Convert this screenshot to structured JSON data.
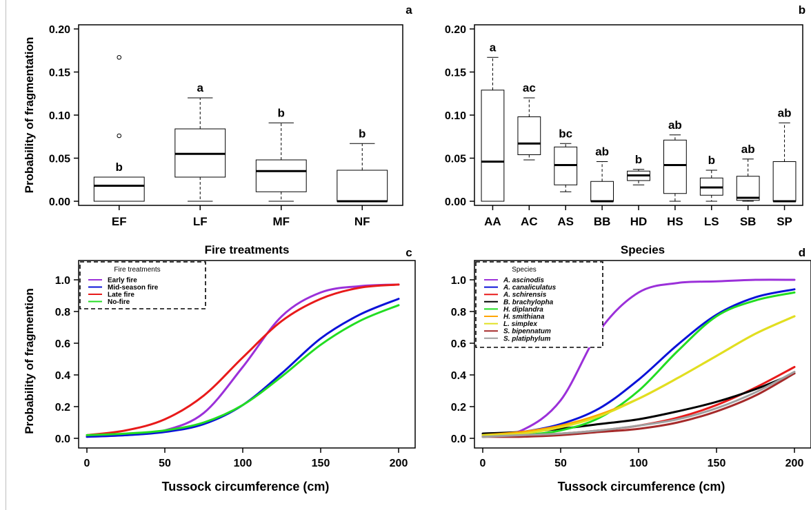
{
  "chart_data": [
    {
      "panel": "a",
      "type": "box",
      "ylabel": "Probability of fragmentation",
      "ylim": [
        0,
        0.2
      ],
      "yticks": [
        "0.00",
        "0.05",
        "0.10",
        "0.15",
        "0.20"
      ],
      "categories": [
        "EF",
        "LF",
        "MF",
        "NF"
      ],
      "boxes": [
        {
          "min": 0,
          "q1": 0,
          "median": 0.018,
          "q3": 0.028,
          "max": 0.028,
          "letter": "b",
          "outliers": [
            0.076,
            0.167
          ]
        },
        {
          "min": 0,
          "q1": 0.028,
          "median": 0.055,
          "q3": 0.084,
          "max": 0.12,
          "letter": "a",
          "outliers": []
        },
        {
          "min": 0,
          "q1": 0.011,
          "median": 0.035,
          "q3": 0.048,
          "max": 0.091,
          "letter": "b",
          "outliers": []
        },
        {
          "min": 0,
          "q1": 0,
          "median": 0,
          "q3": 0.036,
          "max": 0.067,
          "letter": "b",
          "outliers": []
        }
      ]
    },
    {
      "panel": "b",
      "type": "box",
      "ylabel": "",
      "ylim": [
        0,
        0.2
      ],
      "yticks": [
        "0.00",
        "0.05",
        "0.10",
        "0.15",
        "0.20"
      ],
      "categories": [
        "AA",
        "AC",
        "AS",
        "BB",
        "HD",
        "HS",
        "LS",
        "SB",
        "SP"
      ],
      "boxes": [
        {
          "min": 0,
          "q1": 0,
          "median": 0.046,
          "q3": 0.129,
          "max": 0.167,
          "letter": "a",
          "outliers": []
        },
        {
          "min": 0.048,
          "q1": 0.054,
          "median": 0.067,
          "q3": 0.098,
          "max": 0.12,
          "letter": "ac",
          "outliers": []
        },
        {
          "min": 0.011,
          "q1": 0.019,
          "median": 0.042,
          "q3": 0.063,
          "max": 0.067,
          "letter": "bc",
          "outliers": []
        },
        {
          "min": 0,
          "q1": 0,
          "median": 0,
          "q3": 0.023,
          "max": 0.046,
          "letter": "ab",
          "outliers": []
        },
        {
          "min": 0.019,
          "q1": 0.024,
          "median": 0.03,
          "q3": 0.035,
          "max": 0.037,
          "letter": "b",
          "outliers": []
        },
        {
          "min": 0,
          "q1": 0.009,
          "median": 0.042,
          "q3": 0.071,
          "max": 0.077,
          "letter": "ab",
          "outliers": []
        },
        {
          "min": 0,
          "q1": 0.007,
          "median": 0.016,
          "q3": 0.027,
          "max": 0.036,
          "letter": "b",
          "outliers": []
        },
        {
          "min": 0,
          "q1": 0.001,
          "median": 0.004,
          "q3": 0.029,
          "max": 0.049,
          "letter": "ab",
          "outliers": []
        },
        {
          "min": 0,
          "q1": 0,
          "median": 0,
          "q3": 0.046,
          "max": 0.091,
          "letter": "ab",
          "outliers": []
        }
      ]
    },
    {
      "panel": "c",
      "type": "line",
      "title": "Fire treatments",
      "xlabel": "Tussock circumference (cm)",
      "ylabel": "Probability of fragmention",
      "xlim": [
        0,
        200
      ],
      "ylim": [
        0,
        1
      ],
      "xticks": [
        "0",
        "50",
        "100",
        "150",
        "200"
      ],
      "yticks": [
        "0.0",
        "0.2",
        "0.4",
        "0.6",
        "0.8",
        "1.0"
      ],
      "legend": {
        "title": "Fire treatments",
        "position": "top-left"
      },
      "series": [
        {
          "name": "Early fire",
          "color": "#9b30d9",
          "x": [
            0,
            25,
            50,
            75,
            100,
            125,
            150,
            175,
            200
          ],
          "y": [
            0.01,
            0.02,
            0.05,
            0.16,
            0.45,
            0.77,
            0.92,
            0.96,
            0.97
          ]
        },
        {
          "name": "Mid-season fire",
          "color": "#0a12d8",
          "x": [
            0,
            25,
            50,
            75,
            100,
            125,
            150,
            175,
            200
          ],
          "y": [
            0.01,
            0.02,
            0.04,
            0.09,
            0.21,
            0.41,
            0.63,
            0.78,
            0.88
          ]
        },
        {
          "name": "Late fire",
          "color": "#e81a1a",
          "x": [
            0,
            25,
            50,
            75,
            100,
            125,
            150,
            175,
            200
          ],
          "y": [
            0.02,
            0.05,
            0.12,
            0.27,
            0.51,
            0.74,
            0.88,
            0.95,
            0.97
          ]
        },
        {
          "name": "No-fire",
          "color": "#22dd22",
          "x": [
            0,
            25,
            50,
            75,
            100,
            125,
            150,
            175,
            200
          ],
          "y": [
            0.02,
            0.03,
            0.05,
            0.1,
            0.21,
            0.39,
            0.59,
            0.74,
            0.84
          ]
        }
      ]
    },
    {
      "panel": "d",
      "type": "line",
      "title": "Species",
      "xlabel": "Tussock circumference (cm)",
      "ylabel": "",
      "xlim": [
        0,
        200
      ],
      "ylim": [
        0,
        1
      ],
      "xticks": [
        "0",
        "50",
        "100",
        "150",
        "200"
      ],
      "yticks": [
        "0.0",
        "0.2",
        "0.4",
        "0.6",
        "0.8",
        "1.0"
      ],
      "legend": {
        "title": "Species",
        "position": "top-left"
      },
      "series": [
        {
          "name": "A. ascinodis",
          "color": "#9b30d9",
          "x": [
            0,
            25,
            50,
            75,
            100,
            125,
            150,
            175,
            200
          ],
          "y": [
            0.01,
            0.05,
            0.24,
            0.68,
            0.92,
            0.98,
            0.99,
            1.0,
            1.0
          ]
        },
        {
          "name": "A. canaliculatus",
          "color": "#0a12d8",
          "x": [
            0,
            25,
            50,
            75,
            100,
            125,
            150,
            175,
            200
          ],
          "y": [
            0.02,
            0.04,
            0.09,
            0.19,
            0.37,
            0.59,
            0.78,
            0.89,
            0.94
          ]
        },
        {
          "name": "A. schirensis",
          "color": "#e81a1a",
          "x": [
            0,
            25,
            50,
            75,
            100,
            125,
            150,
            175,
            200
          ],
          "y": [
            0.01,
            0.02,
            0.03,
            0.05,
            0.08,
            0.13,
            0.21,
            0.32,
            0.45
          ]
        },
        {
          "name": "B. brachylopha",
          "color": "#000000",
          "x": [
            0,
            25,
            50,
            75,
            100,
            125,
            150,
            175,
            200
          ],
          "y": [
            0.03,
            0.04,
            0.06,
            0.09,
            0.12,
            0.17,
            0.23,
            0.31,
            0.41
          ]
        },
        {
          "name": "H. diplandra",
          "color": "#22dd22",
          "x": [
            0,
            25,
            50,
            75,
            100,
            125,
            150,
            175,
            200
          ],
          "y": [
            0.01,
            0.02,
            0.05,
            0.13,
            0.3,
            0.55,
            0.77,
            0.87,
            0.92
          ]
        },
        {
          "name": "H. smithiana",
          "color": "#ffa500",
          "x": [
            0,
            25,
            50,
            75,
            100,
            125,
            150,
            175,
            200
          ],
          "y": [
            0.02,
            0.04,
            0.08,
            0.15,
            0.25,
            0.38,
            0.52,
            0.66,
            0.77
          ]
        },
        {
          "name": "L. simplex",
          "color": "#e0e020",
          "x": [
            0,
            25,
            50,
            75,
            100,
            125,
            150,
            175,
            200
          ],
          "y": [
            0.02,
            0.03,
            0.07,
            0.14,
            0.25,
            0.38,
            0.52,
            0.66,
            0.77
          ]
        },
        {
          "name": "S. bipennatum",
          "color": "#a52a2a",
          "x": [
            0,
            25,
            50,
            75,
            100,
            125,
            150,
            175,
            200
          ],
          "y": [
            0.01,
            0.01,
            0.02,
            0.04,
            0.06,
            0.1,
            0.17,
            0.27,
            0.41
          ]
        },
        {
          "name": "S. platiphylum",
          "color": "#a0a0a0",
          "x": [
            0,
            25,
            50,
            75,
            100,
            125,
            150,
            175,
            200
          ],
          "y": [
            0.01,
            0.02,
            0.03,
            0.05,
            0.08,
            0.12,
            0.19,
            0.29,
            0.42
          ]
        }
      ]
    }
  ]
}
